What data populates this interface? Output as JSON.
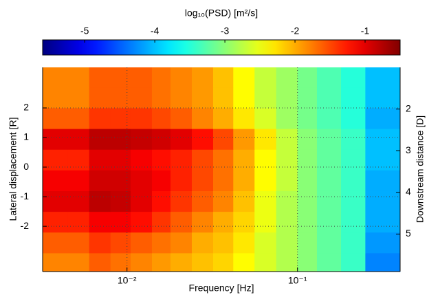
{
  "chart_data": {
    "type": "heatmap",
    "colorbar_title": "log₁₀(PSD) [m²/s]",
    "clim": [
      -5.6,
      -0.5
    ],
    "colorbar_ticks": [
      -5,
      -4,
      -3,
      -2,
      -1
    ],
    "colormap": "jet",
    "x_label": "Frequency [Hz]",
    "y_label": "Lateral displacement [R]",
    "y2_label": "Downstream distance [D]",
    "x_scale": "log",
    "xlim": [
      0.0032,
      0.4
    ],
    "xticks": [
      {
        "value": 0.01,
        "label": "10⁻²"
      },
      {
        "value": 0.1,
        "label": "10⁻¹"
      }
    ],
    "ylim": [
      -3.53,
      3.37
    ],
    "yticks": [
      -2,
      -1,
      0,
      1,
      2
    ],
    "y2lim": [
      1.0,
      5.9
    ],
    "y2ticks": [
      2,
      3,
      4,
      5
    ],
    "grid": true,
    "xbins": [
      0.0032,
      0.0045,
      0.006,
      0.008,
      0.0105,
      0.014,
      0.018,
      0.024,
      0.032,
      0.042,
      0.056,
      0.075,
      0.1,
      0.13,
      0.18,
      0.25,
      0.4
    ],
    "ybins": [
      -3.53,
      -2.9,
      -2.2,
      -1.5,
      -0.8,
      -0.1,
      0.6,
      1.3,
      2.0,
      2.7,
      3.37
    ],
    "z": [
      [
        -1.8,
        -1.8,
        -1.6,
        -1.7,
        -1.8,
        -1.9,
        -2.0,
        -2.1,
        -2.2,
        -2.4,
        -2.6,
        -2.8,
        -3.0,
        -3.2,
        -3.4,
        -4.3
      ],
      [
        -1.6,
        -1.6,
        -1.4,
        -1.5,
        -1.6,
        -1.7,
        -1.8,
        -2.0,
        -2.1,
        -2.3,
        -2.6,
        -2.8,
        -3.0,
        -3.2,
        -3.4,
        -4.2
      ],
      [
        -1.3,
        -1.3,
        -1.1,
        -1.1,
        -1.2,
        -1.4,
        -1.6,
        -1.8,
        -2.0,
        -2.2,
        -2.5,
        -2.8,
        -3.0,
        -3.2,
        -3.4,
        -4.1
      ],
      [
        -1.0,
        -1.0,
        -0.8,
        -0.85,
        -1.0,
        -1.2,
        -1.4,
        -1.6,
        -1.8,
        -2.1,
        -2.5,
        -2.8,
        -3.0,
        -3.2,
        -3.4,
        -4.1
      ],
      [
        -1.1,
        -1.1,
        -0.9,
        -0.9,
        -1.0,
        -1.1,
        -1.3,
        -1.5,
        -1.7,
        -2.0,
        -2.4,
        -2.7,
        -3.0,
        -3.2,
        -3.4,
        -4.1
      ],
      [
        -1.3,
        -1.3,
        -1.0,
        -1.0,
        -1.1,
        -1.2,
        -1.3,
        -1.5,
        -1.7,
        -2.0,
        -2.4,
        -2.7,
        -3.0,
        -3.2,
        -3.4,
        -4.0
      ],
      [
        -1.0,
        -1.0,
        -0.8,
        -0.8,
        -0.85,
        -0.9,
        -1.0,
        -1.2,
        -1.5,
        -1.9,
        -2.3,
        -2.7,
        -3.0,
        -3.2,
        -3.4,
        -4.0
      ],
      [
        -1.6,
        -1.6,
        -1.4,
        -1.4,
        -1.4,
        -1.5,
        -1.6,
        -1.8,
        -2.0,
        -2.3,
        -2.6,
        -2.9,
        -3.1,
        -3.3,
        -3.5,
        -4.1
      ],
      [
        -1.8,
        -1.8,
        -1.6,
        -1.6,
        -1.6,
        -1.7,
        -1.8,
        -1.9,
        -2.1,
        -2.4,
        -2.7,
        -2.9,
        -3.1,
        -3.3,
        -3.5,
        -4.0
      ],
      [
        -1.8,
        -1.8,
        -1.6,
        -1.6,
        -1.6,
        -1.7,
        -1.8,
        -1.9,
        -2.1,
        -2.4,
        -2.7,
        -2.9,
        -3.1,
        -3.3,
        -3.5,
        -4.0
      ]
    ]
  }
}
